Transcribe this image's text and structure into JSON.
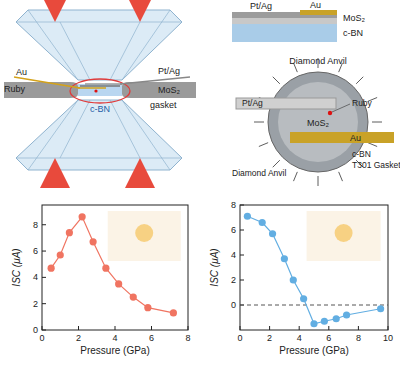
{
  "chart_data": [
    {
      "type": "line",
      "xlabel": "Pressure (GPa)",
      "ylabel": "ISC (μA)",
      "x": [
        0.5,
        1.0,
        1.5,
        2.2,
        2.8,
        3.5,
        4.2,
        5.0,
        5.8,
        7.2
      ],
      "values": [
        4.7,
        5.7,
        7.4,
        8.6,
        6.7,
        4.7,
        3.5,
        2.5,
        1.7,
        1.3
      ],
      "color": "#f07461",
      "marker": "circle",
      "xlim": [
        0,
        8
      ],
      "xticks": [
        0,
        2,
        4,
        6,
        8
      ],
      "ylim": [
        0,
        9.5
      ],
      "yticks": [
        0,
        2,
        4,
        6,
        8
      ]
    },
    {
      "type": "line",
      "xlabel": "Pressure (GPa)",
      "ylabel": "ISC (μA)",
      "x": [
        0.5,
        1.5,
        2.2,
        3.0,
        3.6,
        4.3,
        5.0,
        5.7,
        6.5,
        7.2,
        9.5
      ],
      "values": [
        7.1,
        6.6,
        5.7,
        3.7,
        2.0,
        0.5,
        -1.5,
        -1.3,
        -1.1,
        -0.8,
        -0.3
      ],
      "color": "#62aee2",
      "marker": "circle",
      "reference_lines": [
        0
      ],
      "xlim": [
        0,
        10
      ],
      "xticks": [
        0,
        2,
        4,
        6,
        8,
        10
      ],
      "ylim": [
        -2,
        8
      ],
      "yticks": [
        0,
        2,
        4,
        6,
        8
      ]
    }
  ],
  "diagram": {
    "cell": {
      "pt_ag": "Pt/Ag",
      "au": "Au",
      "ruby": "Ruby",
      "mos2": "MoS₂",
      "cbn": "c-BN",
      "gasket": "gasket"
    },
    "layers": {
      "pt_ag": "Pt/Ag",
      "au": "Au",
      "mos2": "MoS₂",
      "cbn": "c-BN"
    },
    "top_view": {
      "anvil": "Diamond Anvil",
      "pt_ag": "Pt/Ag",
      "ruby": "Ruby",
      "mos2": "MoS₂",
      "au": "Au",
      "cbn": "c-BN",
      "gasket": "T301 Gasket",
      "anvil_bottom": "Diamond Anvil"
    }
  }
}
